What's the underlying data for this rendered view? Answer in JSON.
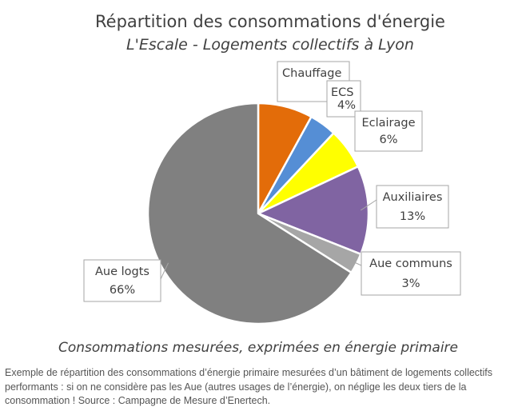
{
  "chart_data": {
    "type": "pie",
    "title": "Répartition des consommations d'énergie",
    "subtitle": "L'Escale - Logements collectifs à Lyon",
    "footer": "Consommations mesurées,  exprimées en énergie primaire",
    "slices": [
      {
        "label": "Chauffage",
        "value_label": "8%",
        "value": 8,
        "color": "#e36c09"
      },
      {
        "label": "ECS",
        "value_label": "4%",
        "value": 4,
        "color": "#558ed5"
      },
      {
        "label": "Eclairage",
        "value_label": "6%",
        "value": 6,
        "color": "#ffff00"
      },
      {
        "label": "Auxiliaires",
        "value_label": "13%",
        "value": 13,
        "color": "#8064a2"
      },
      {
        "label": "Aue communs",
        "value_label": "3%",
        "value": 3,
        "color": "#a6a6a6"
      },
      {
        "label": "Aue logts",
        "value_label": "66%",
        "value": 66,
        "color": "#808080"
      }
    ]
  },
  "caption": "Exemple de répartition des consommations d’énergie primaire mesurées d’un bâtiment de logements collectifs performants : si on ne considère pas les Aue (autres usages de l’énergie), on néglige les deux tiers de la consommation ! Source : Campagne de Mesure d’Enertech."
}
